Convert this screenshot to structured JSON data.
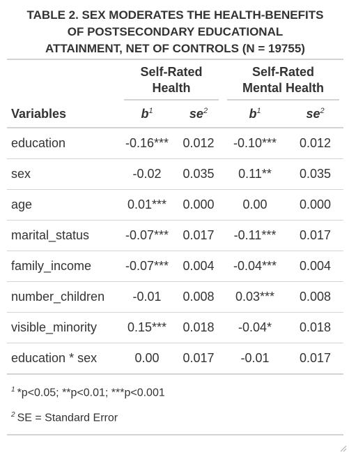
{
  "title": {
    "line1": "TABLE 2. SEX MODERATES THE HEALTH-BENEFITS",
    "line2": "OF POSTSECONDARY EDUCATIONAL",
    "line3": "ATTAINMENT, NET OF CONTROLS (N = 19755)"
  },
  "spanners": {
    "left_line1": "Self-Rated",
    "left_line2": "Health",
    "right_line1": "Self-Rated",
    "right_line2": "Mental Health"
  },
  "columns": {
    "variables": "Variables",
    "b": "b",
    "b_sup": "1",
    "se": "se",
    "se_sup": "2"
  },
  "rows": [
    {
      "variable": "education",
      "b1": "-0.16***",
      "se1": "0.012",
      "b2": "-0.10***",
      "se2": "0.012"
    },
    {
      "variable": "sex",
      "b1": "-0.02",
      "se1": "0.035",
      "b2": "0.11**",
      "se2": "0.035"
    },
    {
      "variable": "age",
      "b1": "0.01***",
      "se1": "0.000",
      "b2": "0.00",
      "se2": "0.000"
    },
    {
      "variable": "marital_status",
      "b1": "-0.07***",
      "se1": "0.017",
      "b2": "-0.11***",
      "se2": "0.017"
    },
    {
      "variable": "family_income",
      "b1": "-0.07***",
      "se1": "0.004",
      "b2": "-0.04***",
      "se2": "0.004"
    },
    {
      "variable": "number_children",
      "b1": "-0.01",
      "se1": "0.008",
      "b2": "0.03***",
      "se2": "0.008"
    },
    {
      "variable": "visible_minority",
      "b1": "0.15***",
      "se1": "0.018",
      "b2": "-0.04*",
      "se2": "0.018"
    },
    {
      "variable": "education * sex",
      "b1": "0.00",
      "se1": "0.017",
      "b2": "-0.01",
      "se2": "0.017"
    }
  ],
  "footnotes": [
    {
      "mark": "1",
      "text": "*p<0.05; **p<0.01; ***p<0.001"
    },
    {
      "mark": "2",
      "text": "SE = Standard Error"
    }
  ],
  "colors": {
    "text": "#333333",
    "rule": "#d3d3d3",
    "background": "#ffffff"
  },
  "icons": {
    "corner": "resize-handle-icon"
  }
}
